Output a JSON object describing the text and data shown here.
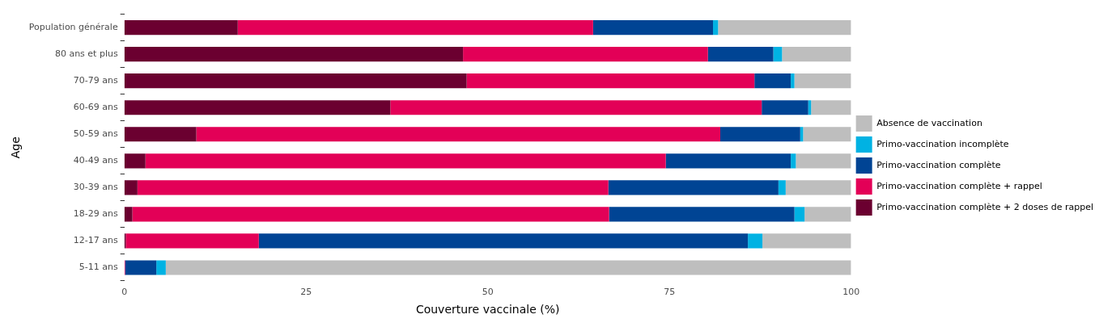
{
  "chart_data": {
    "type": "bar",
    "orientation": "horizontal",
    "stacked": true,
    "xlabel": "Couverture vaccinale (%)",
    "ylabel": "Age",
    "categories": [
      "Population générale",
      "80 ans et plus",
      "70-79 ans",
      "60-69 ans",
      "50-59 ans",
      "40-49 ans",
      "30-39 ans",
      "18-29 ans",
      "12-17 ans",
      "5-11 ans"
    ],
    "xlim": [
      0,
      100
    ],
    "xticks": [
      0,
      25,
      50,
      75,
      100
    ],
    "grid": false,
    "legend": "right",
    "series": [
      {
        "name": "Primo-vaccination complète + 2 doses de rappel",
        "color": "#6b0030",
        "values": [
          15.6,
          46.6,
          47.1,
          36.6,
          9.9,
          2.9,
          1.8,
          1.1,
          0.2,
          0
        ]
      },
      {
        "name": "Primo-vaccination complète + rappel",
        "color": "#e30057",
        "values": [
          48.9,
          33.7,
          39.6,
          51.1,
          72.1,
          71.6,
          64.8,
          65.6,
          18.3,
          0.1
        ]
      },
      {
        "name": "Primo-vaccination complète",
        "color": "#004494",
        "values": [
          16.5,
          9.0,
          5.0,
          6.4,
          11.0,
          17.2,
          23.4,
          25.5,
          67.3,
          4.3
        ]
      },
      {
        "name": "Primo-vaccination incomplète",
        "color": "#00b2e3",
        "values": [
          0.7,
          1.2,
          0.5,
          0.4,
          0.4,
          0.7,
          1.0,
          1.4,
          2.0,
          1.3
        ]
      },
      {
        "name": "Absence de vaccination",
        "color": "#bebebe",
        "values": [
          18.3,
          9.5,
          7.8,
          5.5,
          6.6,
          7.6,
          9.0,
          6.4,
          12.2,
          94.3
        ]
      }
    ]
  }
}
